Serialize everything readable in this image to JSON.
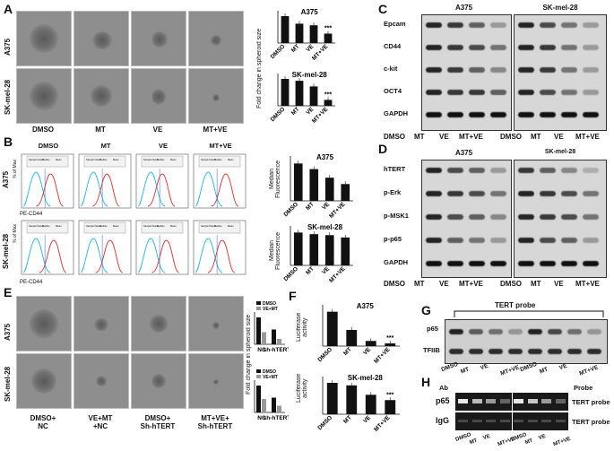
{
  "panels": {
    "A": "A",
    "B": "B",
    "C": "C",
    "D": "D",
    "E": "E",
    "F": "F",
    "G": "G",
    "H": "H"
  },
  "cells": {
    "a375": "A375",
    "skmel28": "SK-mel-28"
  },
  "treatments": {
    "dmso": "DMSO",
    "mt": "MT",
    "ve": "VE",
    "mtve": "MT+VE"
  },
  "panelA": {
    "ylabel": "Fold change in spheroid size",
    "chart_data": [
      {
        "type": "bar",
        "title": "A375",
        "categories": [
          "DMSO",
          "MT",
          "VE",
          "MT+VE"
        ],
        "values": [
          1.0,
          0.72,
          0.66,
          0.35
        ],
        "annotations": {
          "MT+VE": "***"
        }
      },
      {
        "type": "bar",
        "title": "SK-mel-28",
        "categories": [
          "DMSO",
          "MT",
          "VE",
          "MT+VE"
        ],
        "values": [
          1.0,
          0.93,
          0.72,
          0.22
        ],
        "annotations": {
          "MT+VE": "***"
        }
      }
    ]
  },
  "panelB": {
    "ylabel": "Median Fluorescence",
    "xaxis": "PE-CD44",
    "yaxis": "% of Max",
    "table_headers": [
      "Sample Name",
      "Median",
      "Mean"
    ],
    "chart_data": [
      {
        "type": "bar",
        "title": "A375",
        "categories": [
          "DMSO",
          "MT",
          "VE",
          "MT+VE"
        ],
        "values": [
          1.0,
          0.85,
          0.62,
          0.45
        ]
      },
      {
        "type": "bar",
        "title": "SK-mel-28",
        "categories": [
          "DMSO",
          "MT",
          "VE",
          "MT+VE"
        ],
        "values": [
          1.0,
          0.95,
          0.92,
          0.85
        ]
      }
    ]
  },
  "panelC": {
    "markers": [
      "Epcam",
      "CD44",
      "c-kit",
      "OCT4",
      "GAPDH"
    ]
  },
  "panelD": {
    "markers": [
      "hTERT",
      "p-Erk",
      "p-MSK1",
      "p-p65",
      "GAPDH"
    ]
  },
  "panelE": {
    "ylabel": "Fold change in spheroid size",
    "cols": [
      "DMSO+\nNC",
      "VE+MT\n+NC",
      "DMSO+\nSh-hTERT",
      "MT+VE+\nSh-hTERT"
    ],
    "legend": [
      "DMSO",
      "VE+MT"
    ],
    "categories": [
      "NC",
      "sh-hTERT"
    ],
    "chart_data": [
      {
        "type": "bar",
        "series": [
          {
            "name": "DMSO",
            "values": [
              1.0,
              0.55
            ]
          },
          {
            "name": "VE+MT",
            "values": [
              0.45,
              0.2
            ]
          }
        ],
        "categories": [
          "NC",
          "sh-hTERT"
        ]
      },
      {
        "type": "bar",
        "series": [
          {
            "name": "DMSO",
            "values": [
              1.0,
              0.55
            ]
          },
          {
            "name": "VE+MT",
            "values": [
              0.5,
              0.25
            ]
          }
        ],
        "categories": [
          "NC",
          "sh-hTERT"
        ]
      }
    ]
  },
  "panelF": {
    "ylabel": "Luciferase activity",
    "chart_data": [
      {
        "type": "bar",
        "title": "A375",
        "categories": [
          "DMSO",
          "MT",
          "VE",
          "MT+VE"
        ],
        "values": [
          1.0,
          0.47,
          0.15,
          0.08
        ],
        "annotations": {
          "MT+VE": "***"
        }
      },
      {
        "type": "bar",
        "title": "SK-mel-28",
        "categories": [
          "DMSO",
          "MT",
          "VE",
          "MT+VE"
        ],
        "values": [
          1.0,
          0.92,
          0.62,
          0.45
        ],
        "annotations": {
          "MT+VE": "***"
        }
      }
    ]
  },
  "panelG": {
    "probe": "TERT probe",
    "rows": [
      "p65",
      "TFIIB"
    ],
    "lanes": [
      "DMSO",
      "MT",
      "VE",
      "MT+VE",
      "DMSO",
      "MT",
      "VE",
      "MT+VE"
    ]
  },
  "panelH": {
    "ab": "Ab",
    "probe_hdr": "Probe",
    "rows": [
      "p65",
      "IgG"
    ],
    "probe": "TERT probe",
    "lanes": [
      "DMSO",
      "MT",
      "VE",
      "MT+VE",
      "DMSO",
      "MT",
      "VE",
      "MT+VE"
    ]
  },
  "stars": "***"
}
